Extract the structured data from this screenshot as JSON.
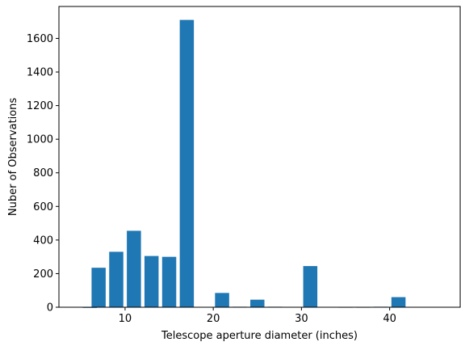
{
  "chart_data": {
    "type": "bar",
    "title": "",
    "xlabel": "Telescope aperture diameter (inches)",
    "ylabel": "Nuber of Observations",
    "xlim": [
      2.5,
      48
    ],
    "ylim": [
      0,
      1790
    ],
    "xticks": [
      10,
      20,
      30,
      40
    ],
    "yticks": [
      0,
      200,
      400,
      600,
      800,
      1000,
      1200,
      1400,
      1600
    ],
    "bar_width": 1.6,
    "bar_color": "#1f77b4",
    "x": [
      6,
      7,
      9,
      11,
      13,
      15,
      17,
      21,
      23,
      25,
      27,
      31,
      33,
      35,
      37,
      39,
      41,
      43,
      45
    ],
    "values": [
      0,
      235,
      330,
      455,
      305,
      300,
      1710,
      85,
      3,
      45,
      3,
      245,
      2,
      1,
      1,
      3,
      60,
      2,
      2
    ],
    "grid": false,
    "legend": "none"
  }
}
